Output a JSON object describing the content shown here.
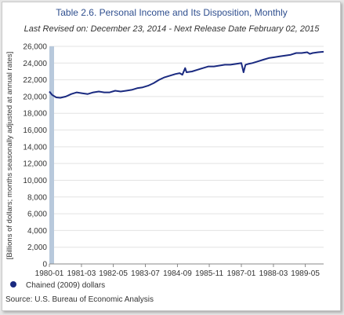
{
  "chart_data": {
    "type": "line",
    "title": "Table 2.6. Personal Income and Its Disposition, Monthly",
    "subtitle": "Last Revised on: December 23, 2014 - Next Release Date February 02, 2015",
    "ylabel": "[Billions of dollars; months seasonally adjusted at annual rates]",
    "xlabel": "",
    "ylim": [
      0,
      26000
    ],
    "yticks": [
      0,
      2000,
      4000,
      6000,
      8000,
      10000,
      12000,
      14000,
      16000,
      18000,
      20000,
      22000,
      24000,
      26000
    ],
    "ytick_labels": [
      "0",
      "2,000",
      "4,000",
      "6,000",
      "8,000",
      "10,000",
      "12,000",
      "14,000",
      "16,000",
      "18,000",
      "20,000",
      "22,000",
      "24,000",
      "26,000"
    ],
    "xlim": [
      1980.0,
      1990.0
    ],
    "xticks": [
      1980.0,
      1981.17,
      1982.33,
      1983.5,
      1984.67,
      1985.83,
      1987.0,
      1988.17,
      1989.33
    ],
    "xtick_labels": [
      "1980-01",
      "1981-03",
      "1982-05",
      "1983-07",
      "1984-09",
      "1985-11",
      "1987-01",
      "1988-03",
      "1989-05"
    ],
    "grid": true,
    "legend_position": "bottom-left",
    "series": [
      {
        "name": "Chained (2009) dollars",
        "color": "#1a2a80",
        "x": [
          1980.0,
          1980.1,
          1980.25,
          1980.4,
          1980.6,
          1980.8,
          1981.0,
          1981.2,
          1981.4,
          1981.6,
          1981.8,
          1982.0,
          1982.2,
          1982.4,
          1982.6,
          1982.8,
          1983.0,
          1983.2,
          1983.4,
          1983.6,
          1983.8,
          1984.0,
          1984.2,
          1984.4,
          1984.6,
          1984.75,
          1984.85,
          1984.95,
          1985.0,
          1985.2,
          1985.4,
          1985.6,
          1985.8,
          1986.0,
          1986.2,
          1986.4,
          1986.6,
          1986.8,
          1987.0,
          1987.08,
          1987.15,
          1987.25,
          1987.4,
          1987.6,
          1987.8,
          1988.0,
          1988.2,
          1988.4,
          1988.6,
          1988.8,
          1989.0,
          1989.2,
          1989.4,
          1989.5,
          1989.6,
          1989.8,
          1990.0
        ],
        "values": [
          20600,
          20200,
          19900,
          19850,
          20000,
          20300,
          20500,
          20400,
          20300,
          20500,
          20600,
          20500,
          20500,
          20700,
          20600,
          20700,
          20800,
          21000,
          21100,
          21300,
          21600,
          22000,
          22300,
          22500,
          22700,
          22800,
          22600,
          23400,
          22900,
          23000,
          23200,
          23400,
          23600,
          23600,
          23700,
          23800,
          23800,
          23900,
          24000,
          22900,
          23800,
          23900,
          24000,
          24200,
          24400,
          24600,
          24700,
          24800,
          24900,
          25000,
          25200,
          25200,
          25300,
          25100,
          25200,
          25300,
          25350
        ]
      }
    ]
  },
  "source": "Source: U.S. Bureau of Economic  Analysis"
}
